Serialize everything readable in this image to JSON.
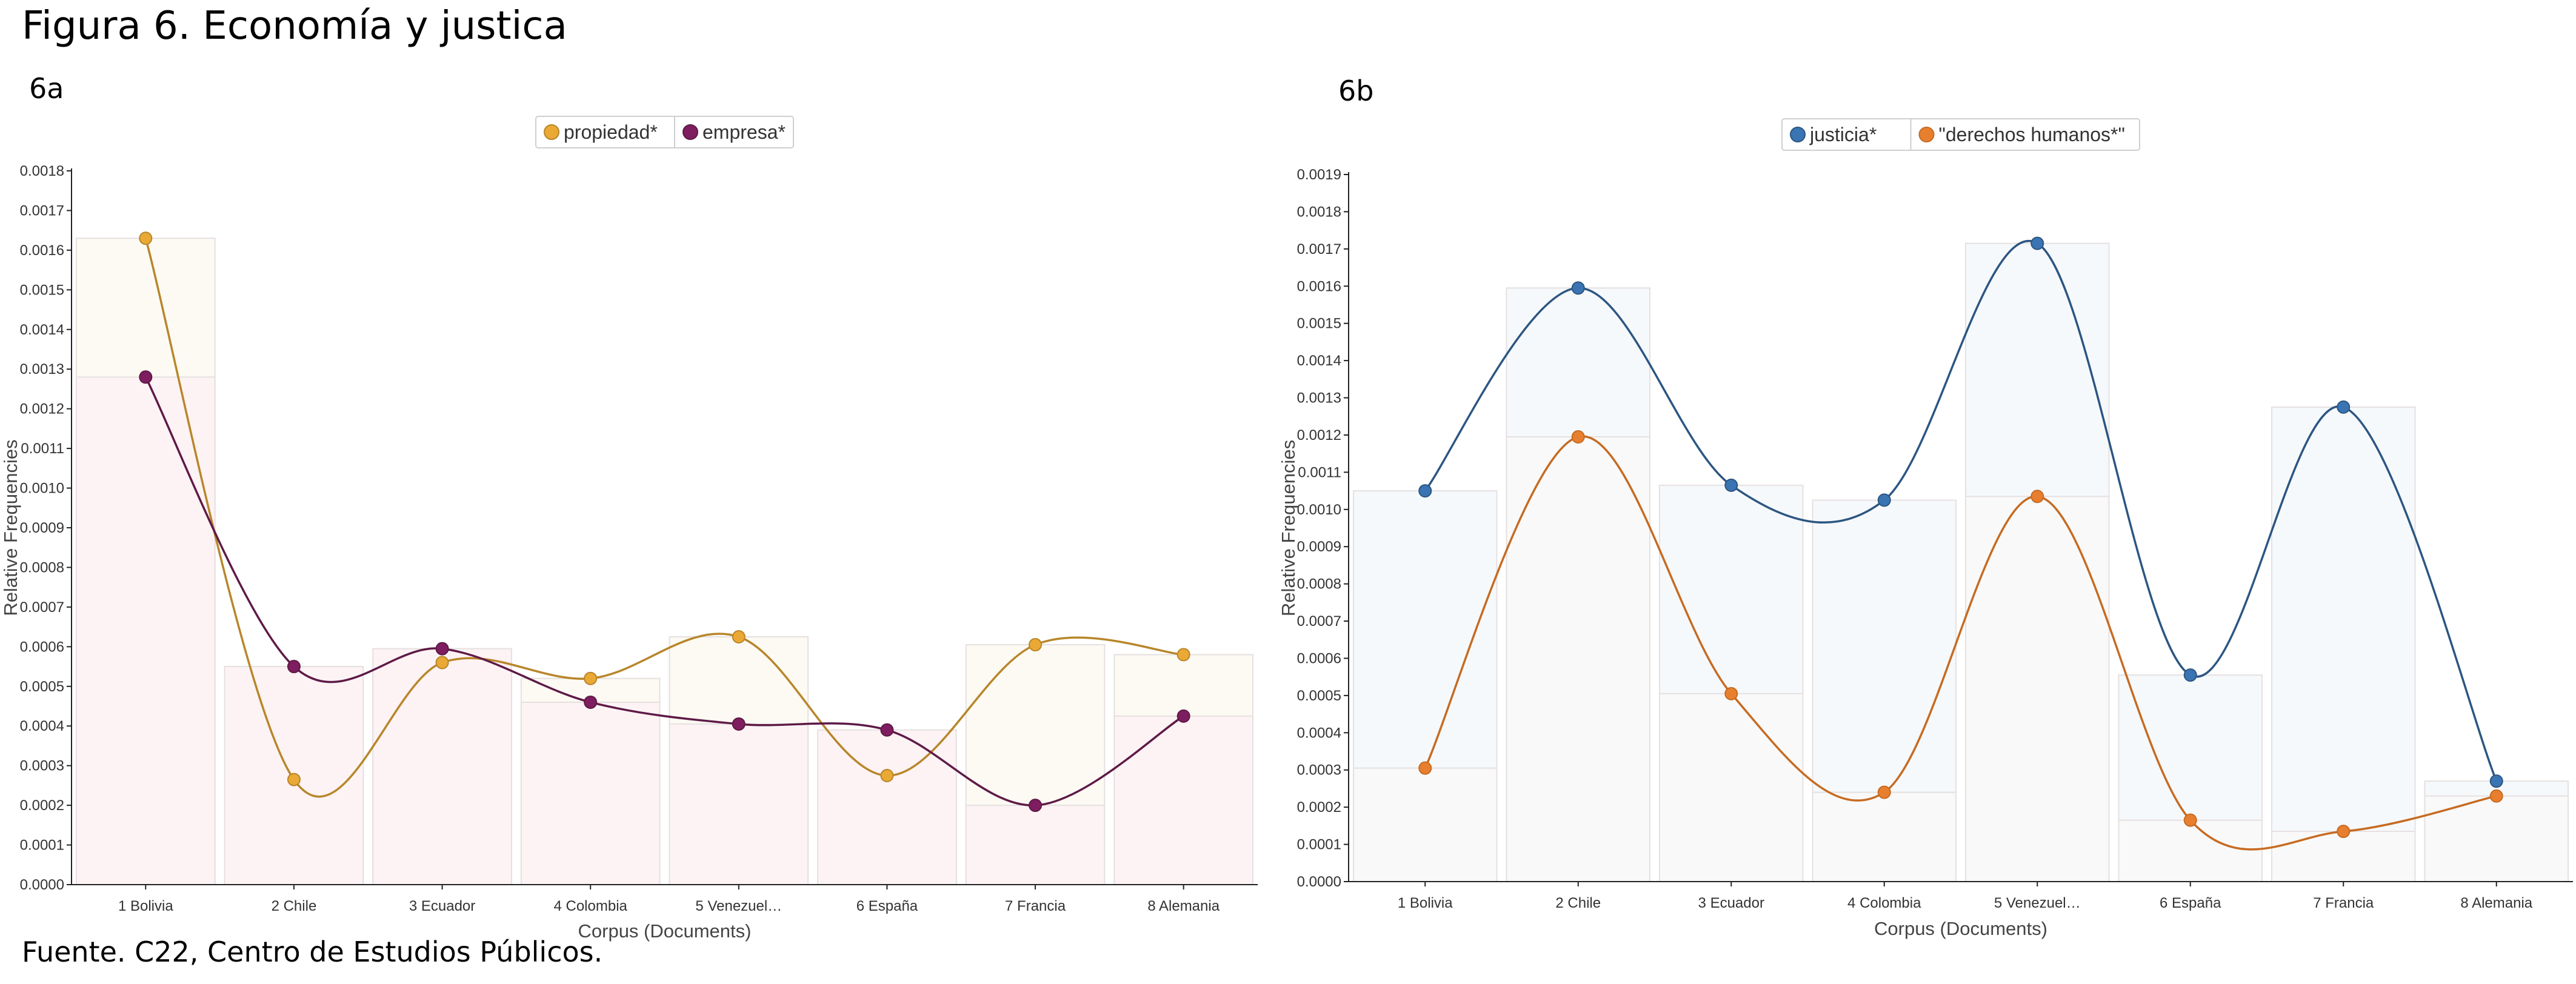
{
  "figure": {
    "title": "Figura 6. Economía y justica",
    "source": "Fuente. C22, Centro de Estudios Públicos."
  },
  "chart_data": [
    {
      "type": "line",
      "panel": "6a",
      "xlabel": "Corpus (Documents)",
      "ylabel": "Relative Frequencies",
      "categories": [
        "1 Bolivia",
        "2 Chile",
        "3 Ecuador",
        "4 Colombia",
        "5 Venezuel…",
        "6 España",
        "7 Francia",
        "8 Alemania"
      ],
      "ylim": [
        0,
        0.0018
      ],
      "yticks": [
        "0.0000",
        "0.0001",
        "0.0002",
        "0.0003",
        "0.0004",
        "0.0005",
        "0.0006",
        "0.0007",
        "0.0008",
        "0.0009",
        "0.0010",
        "0.0011",
        "0.0012",
        "0.0013",
        "0.0014",
        "0.0015",
        "0.0016",
        "0.0017",
        "0.0018"
      ],
      "legend": "top-center",
      "series": [
        {
          "name": "propiedad*",
          "color": "#eaa935",
          "line_color": "#b8862a",
          "values": [
            0.00163,
            0.000265,
            0.00056,
            0.00052,
            0.000625,
            0.000275,
            0.000605,
            0.00058
          ]
        },
        {
          "name": "empresa*",
          "color": "#7e1d5f",
          "line_color": "#5e1a47",
          "values": [
            0.00128,
            0.00055,
            0.000595,
            0.00046,
            0.000405,
            0.00039,
            0.0002,
            0.000425
          ]
        }
      ],
      "bar_fill": [
        "#fcfaf3",
        "#fdf3f4"
      ]
    },
    {
      "type": "line",
      "panel": "6b",
      "xlabel": "Corpus (Documents)",
      "ylabel": "Relative Frequencies",
      "categories": [
        "1 Bolivia",
        "2 Chile",
        "3 Ecuador",
        "4 Colombia",
        "5 Venezuel…",
        "6 España",
        "7 Francia",
        "8 Alemania"
      ],
      "ylim": [
        0,
        0.0019
      ],
      "yticks": [
        "0.0000",
        "0.0001",
        "0.0002",
        "0.0003",
        "0.0004",
        "0.0005",
        "0.0006",
        "0.0007",
        "0.0008",
        "0.0009",
        "0.0010",
        "0.0011",
        "0.0012",
        "0.0013",
        "0.0014",
        "0.0015",
        "0.0016",
        "0.0017",
        "0.0018",
        "0.0019"
      ],
      "legend": "top-center",
      "series": [
        {
          "name": "justicia*",
          "color": "#3a74b2",
          "line_color": "#2c5682",
          "values": [
            0.00105,
            0.001595,
            0.001065,
            0.001025,
            0.001715,
            0.000555,
            0.001275,
            0.00027
          ]
        },
        {
          "name": "\"derechos humanos*\"",
          "color": "#e87f2e",
          "line_color": "#c66b22",
          "values": [
            0.000305,
            0.001195,
            0.000505,
            0.00024,
            0.001035,
            0.000165,
            0.000135,
            0.00023
          ]
        }
      ],
      "bar_fill": [
        "#f6f9fc",
        "#f9f9f9"
      ]
    }
  ]
}
